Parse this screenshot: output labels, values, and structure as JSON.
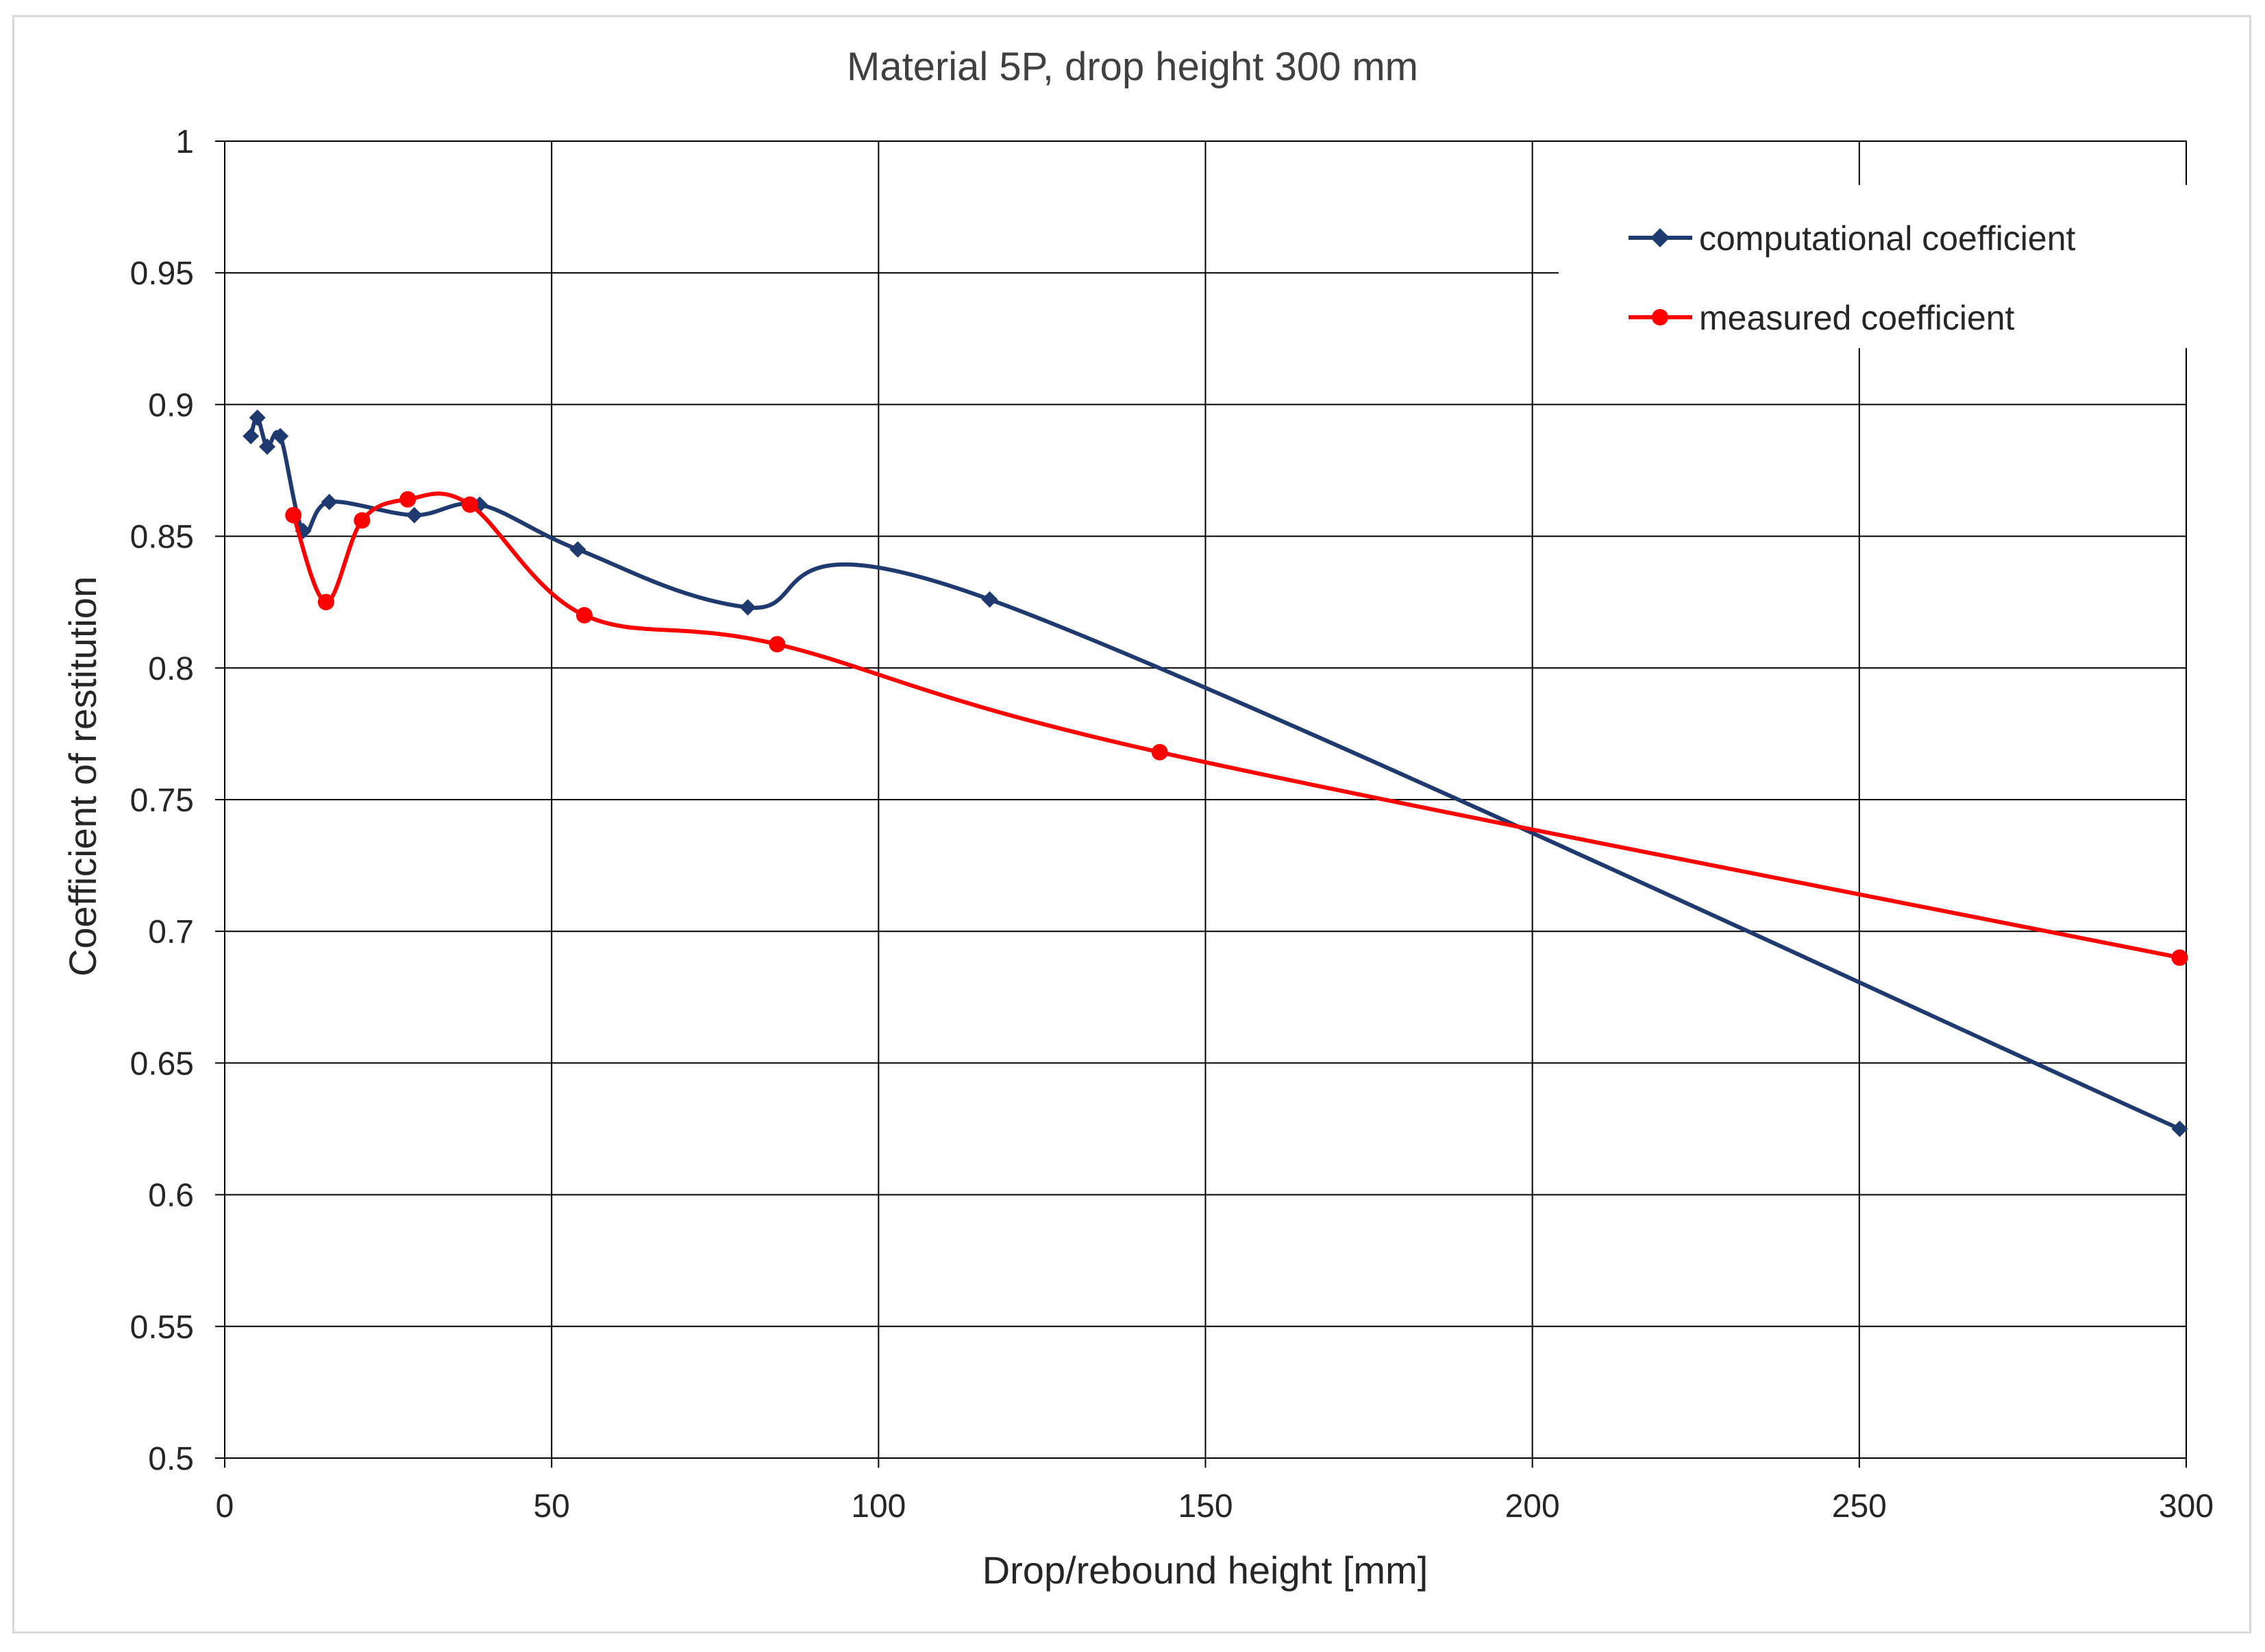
{
  "chart_data": {
    "type": "line",
    "title": "Material 5P, drop height 300 mm",
    "xlabel": "Drop/rebound height [mm]",
    "ylabel": "Coefficient of restitution",
    "xlim": [
      0,
      300
    ],
    "ylim": [
      0.5,
      1
    ],
    "xticks": [
      "0",
      "50",
      "100",
      "150",
      "200",
      "250",
      "300"
    ],
    "yticks": [
      "0.5",
      "0.55",
      "0.6",
      "0.65",
      "0.7",
      "0.75",
      "0.8",
      "0.85",
      "0.9",
      "0.95",
      "1"
    ],
    "grid": true,
    "legend_position": "top-right",
    "series": [
      {
        "name": "computational coefficient",
        "color": "#1f3a6e",
        "marker": "diamond",
        "x": [
          4,
          5,
          6.5,
          8.5,
          12,
          16,
          29,
          39,
          54,
          80,
          117,
          299
        ],
        "y": [
          0.888,
          0.895,
          0.884,
          0.888,
          0.852,
          0.863,
          0.858,
          0.862,
          0.845,
          0.823,
          0.826,
          0.625
        ]
      },
      {
        "name": "measured coefficient",
        "color": "#ff0000",
        "marker": "circle",
        "x": [
          10.5,
          15.5,
          21,
          28,
          37.5,
          55,
          84.5,
          143,
          299
        ],
        "y": [
          0.858,
          0.825,
          0.856,
          0.864,
          0.862,
          0.82,
          0.809,
          0.768,
          0.69
        ]
      }
    ]
  }
}
